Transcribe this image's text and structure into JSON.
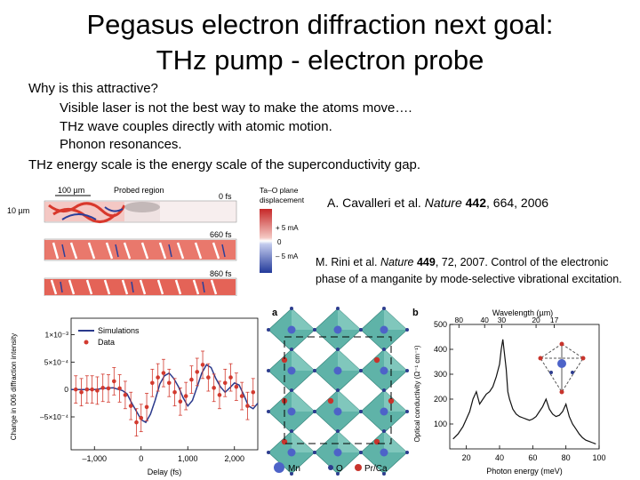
{
  "slide": {
    "title_line1": "Pegasus electron diffraction next goal:",
    "title_line2": "THz pump - electron probe",
    "question": "Why is this attractive?",
    "bullets": [
      "Visible laser is not the best way to make the atoms move….",
      "THz wave couples directly with atomic motion.",
      "Phonon resonances."
    ],
    "conclusion": "THz energy scale is the energy scale of the superconductivity gap.",
    "citation1": {
      "authors": "A. Cavalleri et al. ",
      "journal": "Nature",
      "volume": "442",
      "rest": ", 664, 2006"
    },
    "citation2": {
      "authors": "M. Rini et al. ",
      "journal": "Nature",
      "volume": "449",
      "rest": ", 72, 2007. Control of the electronic phase of a manganite by mode-selective vibrational excitation."
    }
  },
  "figure_left": {
    "scale_100um": "100 µm",
    "scale_10um": "10 µm",
    "probed_region": "Probed region",
    "time_labels": [
      "0 fs",
      "660 fs",
      "860 fs"
    ],
    "colorbar_title": [
      "Ta–O plane",
      "displacement"
    ],
    "colorbar_ticks": [
      "+ 5 mA",
      "0",
      "– 5 mA"
    ],
    "colors": {
      "red": "#d8382c",
      "blue": "#2a3f9a",
      "sim_line": "#2b3a8c",
      "data": "#d23a2f"
    }
  },
  "chart_data": {
    "type": "scatter",
    "title": "",
    "xlabel": "Delay (fs)",
    "ylabel": "Change in 006 diffraction intensity",
    "x_ticks": [
      "–1,000",
      "0",
      "1,000",
      "2,000"
    ],
    "y_ticks": [
      "1×10⁻³",
      "5×10⁻⁴",
      "0",
      "–5×10⁻⁴"
    ],
    "xlim": [
      -1500,
      2500
    ],
    "ylim": [
      -0.0011,
      0.0013
    ],
    "legend": [
      "Simulations",
      "Data"
    ],
    "legend_position": "top-left",
    "series": [
      {
        "name": "Simulations",
        "kind": "line",
        "x": [
          -1500,
          -1200,
          -1000,
          -800,
          -600,
          -400,
          -300,
          -200,
          -100,
          0,
          100,
          200,
          300,
          400,
          500,
          600,
          700,
          800,
          900,
          1000,
          1100,
          1200,
          1300,
          1400,
          1500,
          1600,
          1700,
          1800,
          1900,
          2000,
          2100,
          2200,
          2300,
          2400,
          2500
        ],
        "y": [
          0,
          0,
          0,
          2e-05,
          3e-05,
          -2e-05,
          -8e-05,
          -0.00025,
          -0.0004,
          -0.00055,
          -0.0006,
          -0.00045,
          -0.0002,
          0.0001,
          0.00025,
          0.0003,
          0.0002,
          5e-05,
          -0.00015,
          -0.0003,
          -0.0002,
          5e-05,
          0.0003,
          0.00045,
          0.0004,
          0.0002,
          5e-05,
          -5e-05,
          3e-05,
          0.00012,
          8e-05,
          -0.0001,
          -0.0003,
          -0.00035,
          -0.00025
        ]
      },
      {
        "name": "Data",
        "kind": "points",
        "x": [
          -1400,
          -1280,
          -1160,
          -1050,
          -940,
          -820,
          -700,
          -580,
          -460,
          -340,
          -220,
          -100,
          0,
          120,
          240,
          360,
          480,
          600,
          720,
          840,
          960,
          1080,
          1200,
          1320,
          1440,
          1560,
          1680,
          1800,
          1920,
          2040,
          2160,
          2280,
          2400
        ],
        "y": [
          0,
          -5e-05,
          0,
          0,
          -2e-05,
          3e-05,
          2e-05,
          0.00015,
          2e-05,
          -0.0001,
          -0.0003,
          -0.0006,
          -0.00052,
          -0.00032,
          0.00012,
          0.00022,
          0.0003,
          0.00012,
          -5e-05,
          -0.00022,
          -0.00012,
          0.00018,
          0.00032,
          0.00045,
          0.00022,
          3e-05,
          -0.0001,
          0.00012,
          0.00022,
          5e-05,
          -0.00012,
          -0.0003,
          -5e-05
        ],
        "err": [
          0.00025,
          0.00025,
          0.00025,
          0.00025,
          0.00025,
          0.00025,
          0.00025,
          0.00025,
          0.00025,
          0.00025,
          0.00025,
          0.00025,
          0.00025,
          0.00025,
          0.00025,
          0.00025,
          0.00025,
          0.00025,
          0.00025,
          0.00025,
          0.00025,
          0.00025,
          0.00025,
          0.00025,
          0.00025,
          0.00025,
          0.00025,
          0.00025,
          0.00025,
          0.00025,
          0.00025,
          0.00025,
          0.00025
        ]
      }
    ]
  },
  "figure_right": {
    "panel_a": "a",
    "panel_b": "b",
    "legend_labels": [
      "Mn",
      "O",
      "Pr/Ca"
    ],
    "colors": {
      "octahedron": "#5fb3a8",
      "mn": "#4d63c8",
      "o": "#2e3d8f",
      "prca": "#c8342c"
    },
    "spectrum": {
      "type": "line",
      "xlabel": "Photon energy (meV)",
      "ylabel": "Optical conductivity (Ω⁻¹ cm⁻¹)",
      "top_axis_label": "Wavelength (µm)",
      "x_ticks": [
        "20",
        "40",
        "60",
        "80",
        "100"
      ],
      "y_ticks": [
        "100",
        "200",
        "300",
        "400",
        "500"
      ],
      "top_ticks": [
        "80",
        "40",
        "30",
        "20",
        "17"
      ],
      "xlim": [
        10,
        100
      ],
      "ylim": [
        0,
        500
      ],
      "x": [
        12,
        15,
        18,
        20,
        22,
        24,
        26,
        28,
        30,
        32,
        34,
        36,
        38,
        40,
        41,
        42,
        43,
        44,
        45,
        46,
        48,
        50,
        52,
        54,
        56,
        58,
        60,
        62,
        64,
        66,
        68,
        70,
        72,
        74,
        76,
        78,
        80,
        82,
        84,
        86,
        88,
        90,
        92,
        94,
        96,
        98
      ],
      "y": [
        40,
        60,
        90,
        120,
        150,
        200,
        230,
        180,
        200,
        220,
        230,
        250,
        290,
        340,
        400,
        440,
        380,
        320,
        230,
        200,
        160,
        140,
        130,
        125,
        120,
        115,
        120,
        130,
        150,
        170,
        200,
        160,
        140,
        130,
        135,
        150,
        180,
        130,
        100,
        80,
        60,
        45,
        35,
        30,
        25,
        20
      ]
    }
  }
}
